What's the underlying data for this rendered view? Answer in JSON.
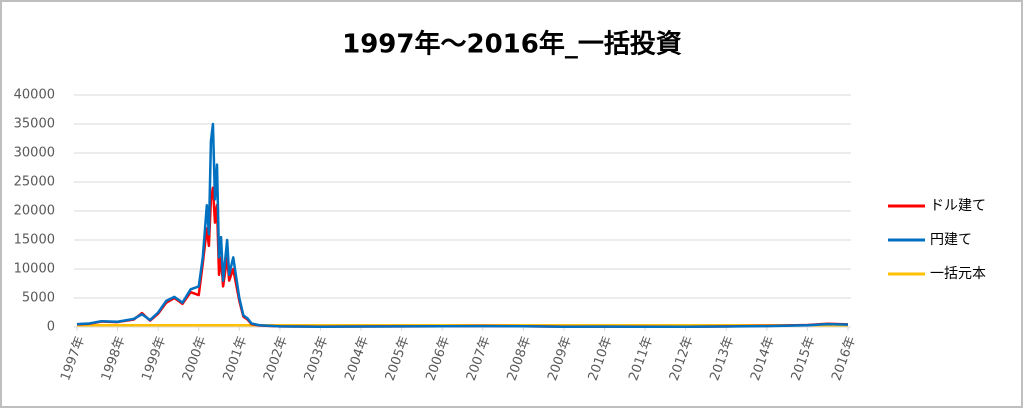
{
  "chart_data": {
    "type": "line",
    "title": "1997年～2016年_一括投資",
    "x": [
      1997.0,
      1997.3,
      1997.6,
      1998.0,
      1998.4,
      1998.6,
      1998.8,
      1999.0,
      1999.2,
      1999.4,
      1999.6,
      1999.8,
      2000.0,
      2000.1,
      2000.2,
      2000.25,
      2000.3,
      2000.35,
      2000.4,
      2000.45,
      2000.5,
      2000.55,
      2000.6,
      2000.7,
      2000.75,
      2000.85,
      2001.0,
      2001.1,
      2001.2,
      2001.3,
      2001.5,
      2002,
      2003,
      2004,
      2005,
      2006,
      2007,
      2008,
      2009,
      2010,
      2011,
      2012,
      2013,
      2014,
      2015,
      2015.5,
      2016
    ],
    "series": [
      {
        "name": "ドル建て",
        "color": "#ff0000",
        "values": [
          450,
          550,
          950,
          850,
          1300,
          2400,
          1100,
          2300,
          4200,
          5000,
          4000,
          6000,
          5500,
          11000,
          17000,
          14000,
          22000,
          24000,
          18000,
          21000,
          9000,
          12000,
          7000,
          12000,
          8000,
          10000,
          4500,
          1800,
          1300,
          500,
          250,
          100,
          60,
          90,
          110,
          130,
          170,
          140,
          60,
          70,
          60,
          50,
          100,
          200,
          350,
          550,
          450
        ]
      },
      {
        "name": "円建て",
        "color": "#0070c0",
        "values": [
          500,
          600,
          1000,
          900,
          1400,
          2200,
          1200,
          2500,
          4500,
          5200,
          4200,
          6500,
          7000,
          12000,
          21000,
          16000,
          32000,
          35000,
          22000,
          28000,
          12000,
          15500,
          8000,
          15000,
          9000,
          12000,
          5000,
          2000,
          1500,
          600,
          300,
          100,
          50,
          80,
          100,
          120,
          150,
          120,
          50,
          60,
          50,
          40,
          80,
          150,
          300,
          500,
          400
        ]
      },
      {
        "name": "一括元本",
        "color": "#ffc000",
        "values": [
          300,
          300,
          300,
          300,
          300,
          300,
          300,
          300,
          300,
          300,
          300,
          300,
          300,
          300,
          300,
          300,
          300,
          300,
          300,
          300,
          300,
          300,
          300,
          300,
          300,
          300,
          300,
          300,
          300,
          300,
          300,
          300,
          300,
          300,
          300,
          300,
          300,
          300,
          300,
          300,
          300,
          300,
          300,
          300,
          300,
          300,
          300
        ]
      }
    ],
    "xlim": [
      1997,
      2016
    ],
    "xticks": [
      {
        "value": 1997,
        "label": "1997年"
      },
      {
        "value": 1998,
        "label": "1998年"
      },
      {
        "value": 1999,
        "label": "1999年"
      },
      {
        "value": 2000,
        "label": "2000年"
      },
      {
        "value": 2001,
        "label": "2001年"
      },
      {
        "value": 2002,
        "label": "2002年"
      },
      {
        "value": 2003,
        "label": "2003年"
      },
      {
        "value": 2004,
        "label": "2004年"
      },
      {
        "value": 2005,
        "label": "2005年"
      },
      {
        "value": 2006,
        "label": "2006年"
      },
      {
        "value": 2007,
        "label": "2007年"
      },
      {
        "value": 2008,
        "label": "2008年"
      },
      {
        "value": 2009,
        "label": "2009年"
      },
      {
        "value": 2010,
        "label": "2010年"
      },
      {
        "value": 2011,
        "label": "2011年"
      },
      {
        "value": 2012,
        "label": "2012年"
      },
      {
        "value": 2013,
        "label": "2013年"
      },
      {
        "value": 2014,
        "label": "2014年"
      },
      {
        "value": 2015,
        "label": "2015年"
      },
      {
        "value": 2016,
        "label": "2016年"
      }
    ],
    "ylim": [
      0,
      40000
    ],
    "yticks": [
      0,
      5000,
      10000,
      15000,
      20000,
      25000,
      30000,
      35000,
      40000
    ],
    "grid": true,
    "legend": "right"
  }
}
